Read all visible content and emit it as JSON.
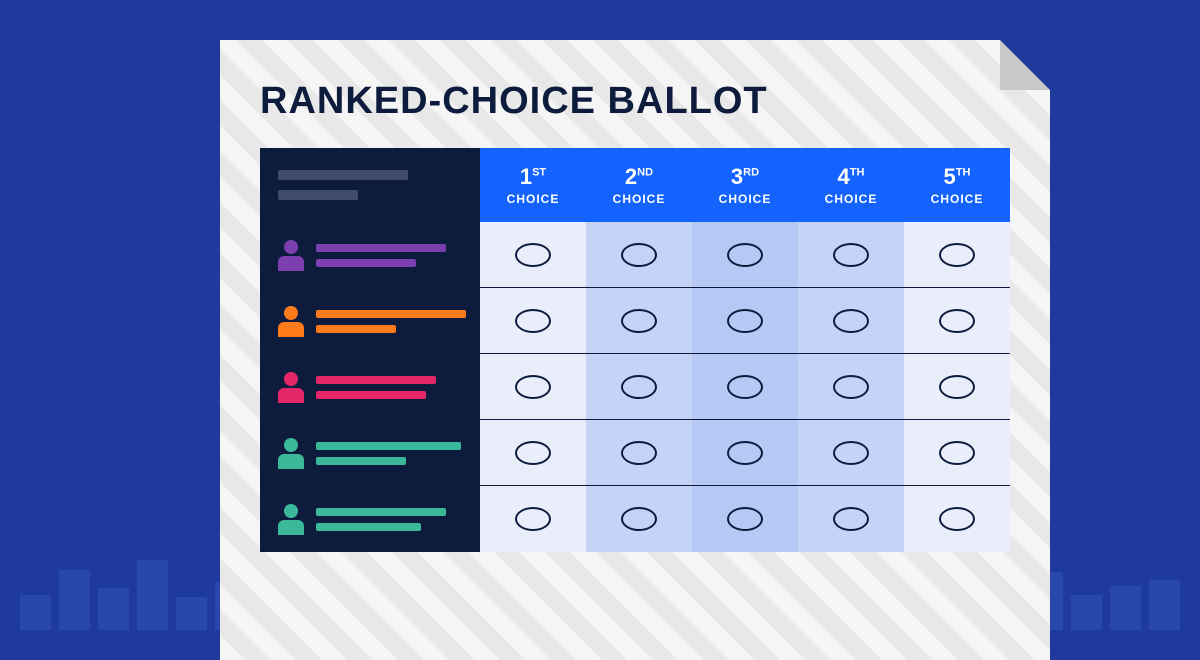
{
  "title": "RANKED-CHOICE BALLOT",
  "header": {
    "header_bg": "#1463ff",
    "left_bg": "#0d1b3d",
    "header_placeholder_color": "#404a6b",
    "columns": [
      {
        "num": "1",
        "ord": "ST",
        "sub": "CHOICE"
      },
      {
        "num": "2",
        "ord": "ND",
        "sub": "CHOICE"
      },
      {
        "num": "3",
        "ord": "RD",
        "sub": "CHOICE"
      },
      {
        "num": "4",
        "ord": "TH",
        "sub": "CHOICE"
      },
      {
        "num": "5",
        "ord": "TH",
        "sub": "CHOICE"
      }
    ]
  },
  "candidates": [
    {
      "color": "#7c3fb0",
      "line1_w": 130,
      "line2_w": 100
    },
    {
      "color": "#ff7a1a",
      "line1_w": 150,
      "line2_w": 80
    },
    {
      "color": "#e5276a",
      "line1_w": 120,
      "line2_w": 110
    },
    {
      "color": "#3bb89a",
      "line1_w": 145,
      "line2_w": 90
    },
    {
      "color": "#3bb89a",
      "line1_w": 130,
      "line2_w": 105
    }
  ],
  "cell_backgrounds": [
    "#e9eefa",
    "#c3d4f7",
    "#b6c9f5",
    "#c3d4f7",
    "#e9eefa"
  ],
  "oval_border": "#0d1b3d",
  "paper_bg": "#f5f5f5",
  "stripe_bg": "#e8e8e8",
  "page_bg": "#1e3a9e",
  "bottom_bars": [
    35,
    60,
    42,
    70,
    33,
    48,
    40,
    20,
    55,
    38,
    62,
    30,
    44,
    52,
    40,
    35,
    60,
    42,
    28,
    50,
    36,
    45,
    55,
    32,
    48,
    40,
    58,
    35,
    44,
    50
  ]
}
